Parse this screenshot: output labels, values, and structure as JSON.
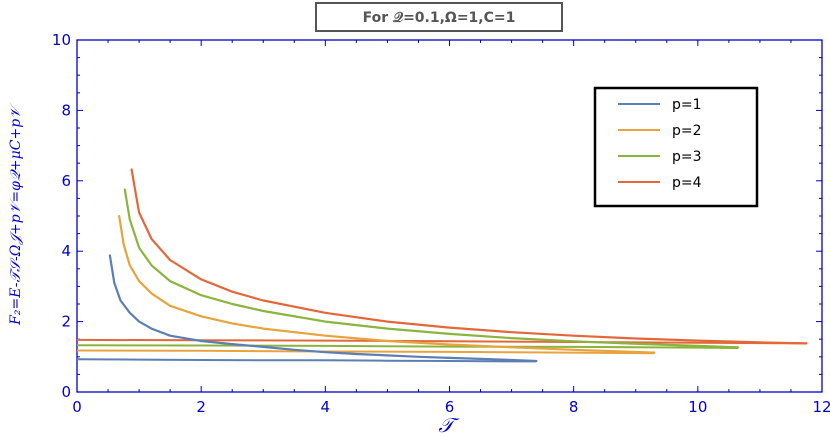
{
  "chart_data": {
    "type": "line",
    "title": "For 𝒬=0.1,Ω=1,C=1",
    "xlabel": "𝒯",
    "ylabel": "F₂=E-𝒯𝒮-Ω𝒥+p𝒱=φ𝒬+μC+p𝒱",
    "xlim": [
      0,
      12
    ],
    "ylim": [
      0,
      10
    ],
    "xticks": [
      "0",
      "2",
      "4",
      "6",
      "8",
      "10",
      "12"
    ],
    "yticks": [
      "0",
      "2",
      "4",
      "6",
      "8",
      "10"
    ],
    "grid": false,
    "legend_position": "top-right",
    "series": [
      {
        "name": "p=1",
        "color": "#5b7fb5",
        "upper": [
          [
            0.53,
            3.88
          ],
          [
            0.6,
            3.1
          ],
          [
            0.7,
            2.6
          ],
          [
            0.85,
            2.25
          ],
          [
            1.0,
            2.0
          ],
          [
            1.2,
            1.8
          ],
          [
            1.5,
            1.6
          ],
          [
            2.0,
            1.45
          ],
          [
            2.5,
            1.36
          ],
          [
            3.0,
            1.28
          ],
          [
            3.5,
            1.2
          ],
          [
            4.0,
            1.13
          ],
          [
            4.5,
            1.08
          ],
          [
            5.0,
            1.04
          ],
          [
            5.5,
            1.0
          ],
          [
            6.0,
            0.97
          ],
          [
            6.5,
            0.94
          ],
          [
            7.0,
            0.91
          ],
          [
            7.4,
            0.88
          ]
        ],
        "lower": [
          [
            0.0,
            0.93
          ],
          [
            1.0,
            0.92
          ],
          [
            2.0,
            0.91
          ],
          [
            3.0,
            0.9
          ],
          [
            4.0,
            0.9
          ],
          [
            5.0,
            0.89
          ],
          [
            6.0,
            0.88
          ],
          [
            7.0,
            0.87
          ],
          [
            7.4,
            0.87
          ]
        ]
      },
      {
        "name": "p=2",
        "color": "#e8a33c",
        "upper": [
          [
            0.68,
            5.0
          ],
          [
            0.75,
            4.2
          ],
          [
            0.85,
            3.6
          ],
          [
            1.0,
            3.15
          ],
          [
            1.2,
            2.8
          ],
          [
            1.5,
            2.45
          ],
          [
            2.0,
            2.15
          ],
          [
            2.5,
            1.95
          ],
          [
            3.0,
            1.8
          ],
          [
            4.0,
            1.6
          ],
          [
            5.0,
            1.45
          ],
          [
            6.0,
            1.35
          ],
          [
            7.0,
            1.27
          ],
          [
            8.0,
            1.2
          ],
          [
            9.3,
            1.12
          ]
        ],
        "lower": [
          [
            0.0,
            1.18
          ],
          [
            2.0,
            1.17
          ],
          [
            4.0,
            1.15
          ],
          [
            6.0,
            1.14
          ],
          [
            8.0,
            1.12
          ],
          [
            9.3,
            1.1
          ]
        ]
      },
      {
        "name": "p=3",
        "color": "#8ab43c",
        "upper": [
          [
            0.77,
            5.75
          ],
          [
            0.85,
            4.9
          ],
          [
            1.0,
            4.1
          ],
          [
            1.2,
            3.6
          ],
          [
            1.5,
            3.15
          ],
          [
            2.0,
            2.75
          ],
          [
            2.5,
            2.5
          ],
          [
            3.0,
            2.3
          ],
          [
            4.0,
            2.0
          ],
          [
            5.0,
            1.8
          ],
          [
            6.0,
            1.65
          ],
          [
            7.0,
            1.53
          ],
          [
            8.0,
            1.44
          ],
          [
            9.0,
            1.37
          ],
          [
            10.0,
            1.31
          ],
          [
            10.65,
            1.27
          ]
        ],
        "lower": [
          [
            0.0,
            1.33
          ],
          [
            2.0,
            1.32
          ],
          [
            4.0,
            1.31
          ],
          [
            6.0,
            1.29
          ],
          [
            8.0,
            1.28
          ],
          [
            10.0,
            1.26
          ],
          [
            10.65,
            1.25
          ]
        ]
      },
      {
        "name": "p=4",
        "color": "#e2683a",
        "upper": [
          [
            0.88,
            6.32
          ],
          [
            0.95,
            5.6
          ],
          [
            1.0,
            5.1
          ],
          [
            1.2,
            4.35
          ],
          [
            1.5,
            3.75
          ],
          [
            2.0,
            3.2
          ],
          [
            2.5,
            2.85
          ],
          [
            3.0,
            2.6
          ],
          [
            4.0,
            2.25
          ],
          [
            5.0,
            2.0
          ],
          [
            6.0,
            1.83
          ],
          [
            7.0,
            1.7
          ],
          [
            8.0,
            1.6
          ],
          [
            9.0,
            1.52
          ],
          [
            10.0,
            1.46
          ],
          [
            11.0,
            1.41
          ],
          [
            11.75,
            1.38
          ]
        ],
        "lower": [
          [
            0.0,
            1.48
          ],
          [
            2.0,
            1.47
          ],
          [
            4.0,
            1.46
          ],
          [
            6.0,
            1.44
          ],
          [
            8.0,
            1.42
          ],
          [
            10.0,
            1.4
          ],
          [
            11.75,
            1.38
          ]
        ]
      }
    ]
  }
}
